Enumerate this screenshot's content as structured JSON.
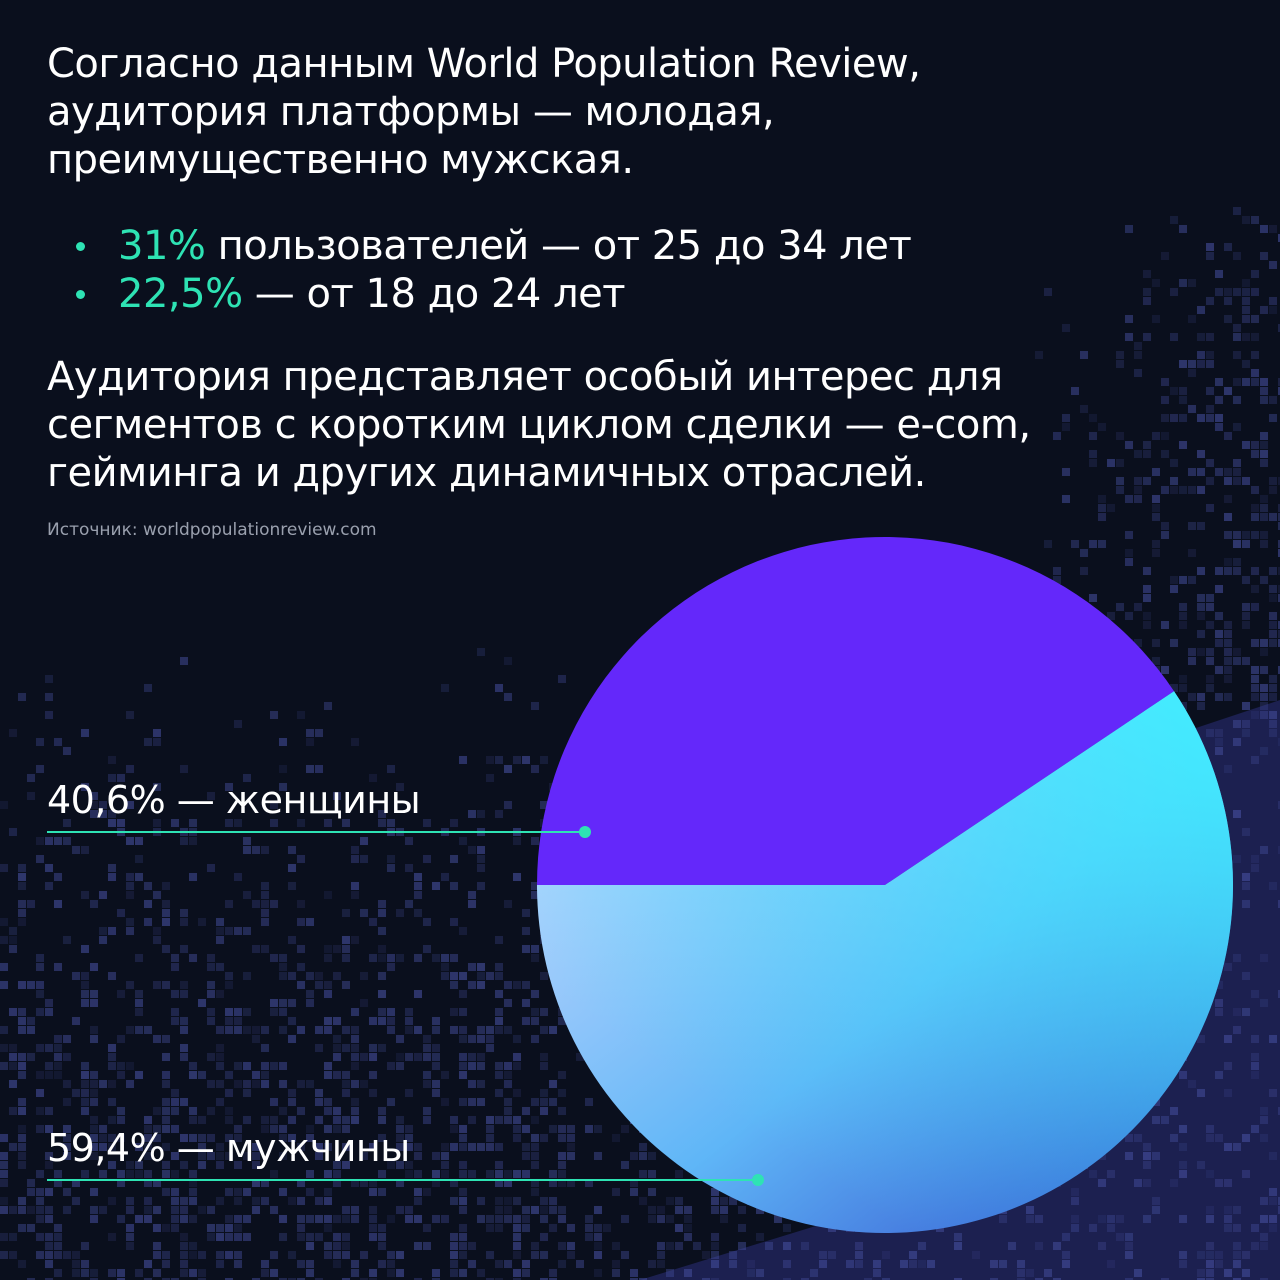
{
  "intro": {
    "line1": "Согласно данным World Population Review,",
    "line2": "аудитория платформы — молодая,",
    "line3": "преимущественно мужская."
  },
  "bullets": [
    {
      "highlight": "31%",
      "text": " пользователей — от 25 до 34 лет"
    },
    {
      "highlight": "22,5%",
      "text": " — от 18 до 24 лет"
    }
  ],
  "paragraph": {
    "line1": "Аудитория представляет особый интерес для",
    "line2": "сегментов с коротким циклом сделки — e-com,",
    "line3": "гейминга и других динамичных отраслей."
  },
  "source": "Источник: worldpopulationreview.com",
  "colors": {
    "background": "#0a0f1d",
    "accent": "#2ee3b4",
    "women_slice": "#6428fa",
    "men_gradient_start": "#d7dcff",
    "men_gradient_end": "#2e44c8",
    "men_gradient_highlight": "#3ef0ff"
  },
  "chart_data": {
    "type": "pie",
    "slices": [
      {
        "label": "40,6% — женщины",
        "value": 40.6
      },
      {
        "label": "59,4% — мужчины",
        "value": 59.4
      }
    ]
  }
}
